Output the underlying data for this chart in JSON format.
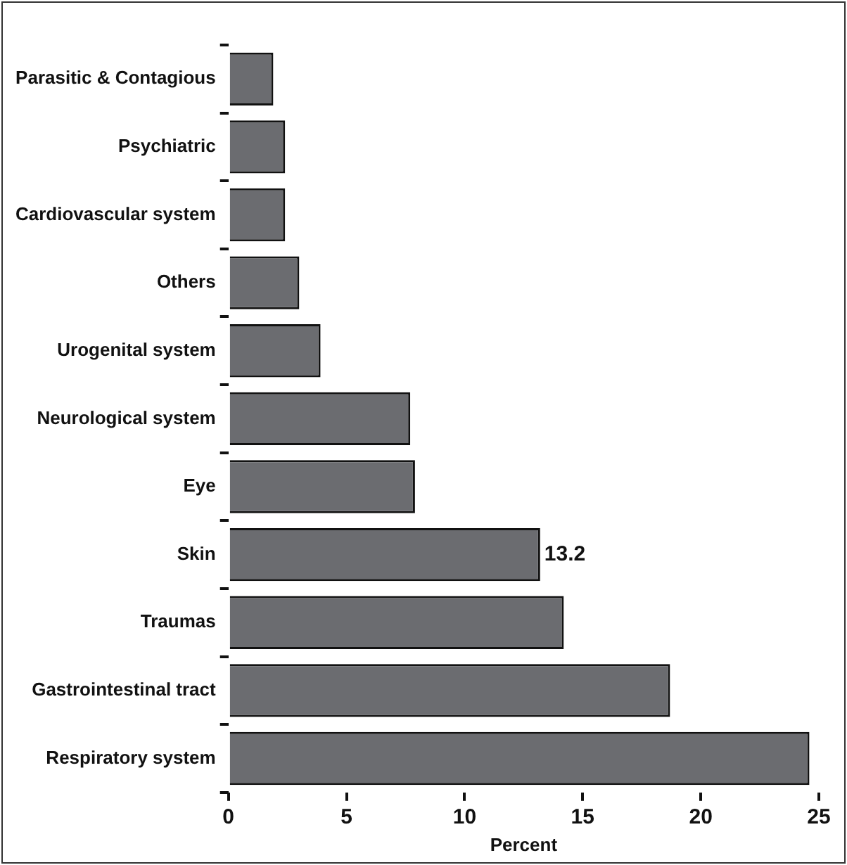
{
  "chart_data": {
    "type": "bar",
    "orientation": "horizontal",
    "xlabel": "Percent",
    "categories": [
      "Parasitic & Contagious",
      "Psychiatric",
      "Cardiovascular system",
      "Others",
      "Urogenital system",
      "Neurological system",
      "Eye",
      "Skin",
      "Traumas",
      "Gastrointestinal tract",
      "Respiratory system"
    ],
    "values": [
      1.9,
      2.4,
      2.4,
      3.0,
      3.9,
      7.7,
      7.9,
      13.2,
      14.2,
      18.7,
      24.6
    ],
    "value_labels": [
      null,
      null,
      null,
      null,
      null,
      null,
      null,
      "13.2",
      null,
      null,
      null
    ],
    "color": "#6b6c70",
    "xlim": [
      0,
      25
    ],
    "xticks": [
      0,
      5,
      10,
      15,
      20,
      25
    ],
    "grid": false,
    "legend": false
  }
}
